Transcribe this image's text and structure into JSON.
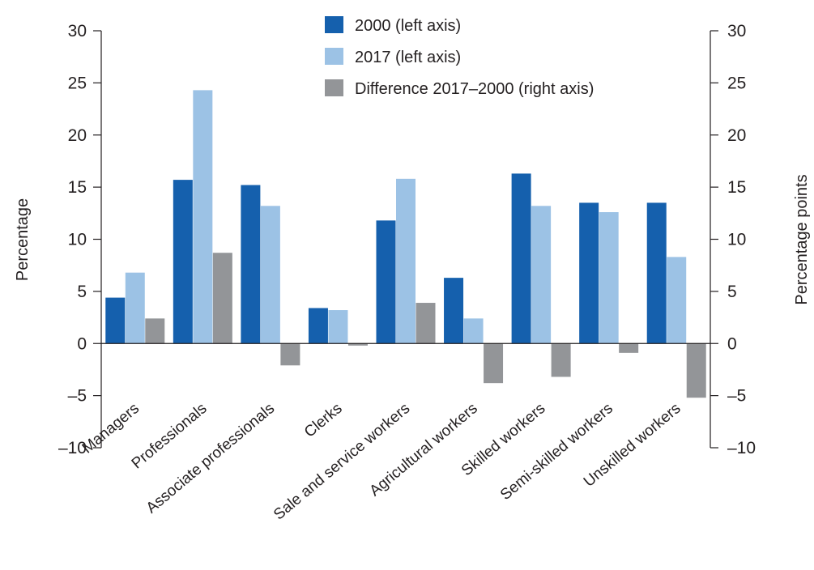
{
  "chart_data": {
    "type": "bar",
    "categories": [
      "Managers",
      "Professionals",
      "Associate professionals",
      "Clerks",
      "Sale and service workers",
      "Agricultural workers",
      "Skilled workers",
      "Semi-skilled workers",
      "Unskilled workers"
    ],
    "series": [
      {
        "name": "2000 (left axis)",
        "axis": "left",
        "color": "#1560ad",
        "values": [
          4.4,
          15.7,
          15.2,
          3.4,
          11.8,
          6.3,
          16.3,
          13.5,
          13.5
        ]
      },
      {
        "name": "2017 (left axis)",
        "axis": "left",
        "color": "#9cc2e5",
        "values": [
          6.8,
          24.3,
          13.2,
          3.2,
          15.8,
          2.4,
          13.2,
          12.6,
          8.3
        ]
      },
      {
        "name": "Difference 2017–2000 (right axis)",
        "axis": "right",
        "color": "#939598",
        "values": [
          2.4,
          8.7,
          -2.1,
          -0.2,
          3.9,
          -3.8,
          -3.2,
          -0.9,
          -5.2
        ]
      }
    ],
    "ylabel_left": "Percentage",
    "ylabel_right": "Percentage points",
    "ylim_left": [
      -10,
      30
    ],
    "ylim_right": [
      -10,
      30
    ],
    "yticks_left": [
      "30",
      "25",
      "20",
      "15",
      "10",
      "5",
      "0",
      "–5",
      "–10"
    ],
    "yticks_right": [
      "30",
      "25",
      "20",
      "15",
      "10",
      "5",
      "0",
      "–5",
      "–10"
    ],
    "legend_position": "top-center",
    "grid": false
  }
}
